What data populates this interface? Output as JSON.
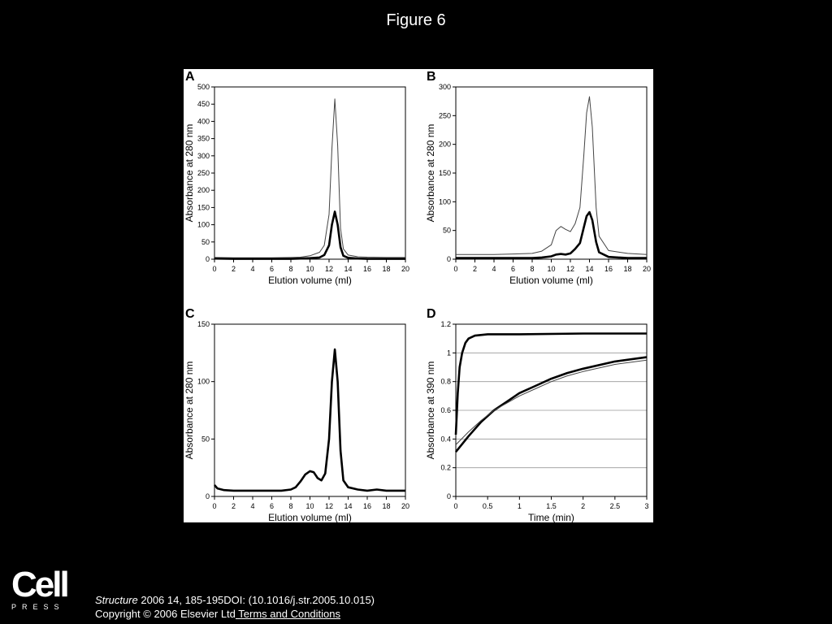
{
  "title": "Figure 6",
  "chart_data": [
    {
      "panel": "A",
      "type": "line",
      "xlabel": "Elution volume (ml)",
      "ylabel": "Absorbance at 280 nm",
      "xlim": [
        0,
        20
      ],
      "ylim": [
        0,
        500
      ],
      "xticks": [
        0,
        2,
        4,
        6,
        8,
        10,
        12,
        14,
        16,
        18,
        20
      ],
      "yticks": [
        0,
        50,
        100,
        150,
        200,
        250,
        300,
        350,
        400,
        450,
        500
      ],
      "series": [
        {
          "style": "thin",
          "x": [
            0,
            2,
            4,
            6,
            8,
            9,
            10,
            11,
            11.5,
            12,
            12.3,
            12.6,
            12.9,
            13.2,
            13.5,
            14,
            15,
            16,
            18,
            20
          ],
          "y": [
            5,
            4,
            4,
            4,
            5,
            6,
            10,
            20,
            40,
            130,
            320,
            465,
            330,
            90,
            30,
            12,
            7,
            6,
            5,
            5
          ]
        },
        {
          "style": "thick",
          "x": [
            0,
            2,
            4,
            6,
            8,
            9,
            10,
            11,
            11.5,
            12,
            12.3,
            12.6,
            12.9,
            13.2,
            13.5,
            14,
            15,
            16,
            18,
            20
          ],
          "y": [
            2,
            1,
            1,
            1,
            1,
            2,
            3,
            5,
            12,
            40,
            100,
            138,
            100,
            35,
            10,
            4,
            2,
            1,
            1,
            1
          ]
        }
      ]
    },
    {
      "panel": "B",
      "type": "line",
      "xlabel": "Elution volume (ml)",
      "ylabel": "Absorbance at 280 nm",
      "xlim": [
        0,
        20
      ],
      "ylim": [
        0,
        300
      ],
      "xticks": [
        0,
        2,
        4,
        6,
        8,
        10,
        12,
        14,
        16,
        18,
        20
      ],
      "yticks": [
        0,
        50,
        100,
        150,
        200,
        250,
        300
      ],
      "series": [
        {
          "style": "thin",
          "x": [
            0,
            2,
            4,
            6,
            8,
            9,
            10,
            10.5,
            11,
            11.5,
            12,
            12.5,
            13,
            13.4,
            13.7,
            14,
            14.3,
            14.7,
            15,
            16,
            18,
            20
          ],
          "y": [
            8,
            8,
            8,
            9,
            10,
            14,
            25,
            50,
            57,
            52,
            48,
            62,
            90,
            180,
            255,
            283,
            230,
            90,
            40,
            15,
            10,
            8
          ]
        },
        {
          "style": "thick",
          "x": [
            0,
            2,
            4,
            6,
            8,
            9,
            10,
            10.5,
            11,
            11.5,
            12,
            12.5,
            13,
            13.4,
            13.7,
            14,
            14.3,
            14.7,
            15,
            16,
            18,
            20
          ],
          "y": [
            2,
            2,
            2,
            2,
            2,
            3,
            5,
            8,
            9,
            8,
            10,
            18,
            28,
            55,
            75,
            82,
            68,
            30,
            12,
            4,
            2,
            2
          ]
        }
      ]
    },
    {
      "panel": "C",
      "type": "line",
      "xlabel": "Elution volume (ml)",
      "ylabel": "Absorbance at 280 nm",
      "xlim": [
        0,
        20
      ],
      "ylim": [
        0,
        150
      ],
      "xticks": [
        0,
        2,
        4,
        6,
        8,
        10,
        12,
        14,
        16,
        18,
        20
      ],
      "yticks": [
        0,
        50,
        100,
        150
      ],
      "series": [
        {
          "style": "thick",
          "x": [
            0,
            0.3,
            1,
            2,
            4,
            6,
            7,
            8,
            8.5,
            9,
            9.5,
            10,
            10.4,
            10.8,
            11.2,
            11.6,
            12,
            12.3,
            12.6,
            12.9,
            13.2,
            13.5,
            14,
            15,
            16,
            17,
            18,
            19,
            20
          ],
          "y": [
            10,
            7,
            5.5,
            5,
            5,
            5,
            5,
            6,
            8,
            13,
            19,
            22,
            21,
            16,
            14,
            20,
            50,
            100,
            128,
            100,
            40,
            14,
            8,
            6,
            5,
            6,
            5,
            5,
            5
          ]
        }
      ]
    },
    {
      "panel": "D",
      "type": "line",
      "xlabel": "Time (min)",
      "ylabel": "Absorbance at 390 nm",
      "xlim": [
        0,
        3
      ],
      "ylim": [
        0,
        1.2
      ],
      "xticks": [
        0,
        0.5,
        1,
        1.5,
        2,
        2.5,
        3
      ],
      "yticks": [
        0,
        0.2,
        0.4,
        0.6,
        0.8,
        1,
        1.2
      ],
      "grid": true,
      "series": [
        {
          "style": "thick",
          "x": [
            0,
            0.03,
            0.06,
            0.1,
            0.15,
            0.2,
            0.3,
            0.5,
            1,
            2,
            3
          ],
          "y": [
            0.43,
            0.72,
            0.9,
            1.0,
            1.07,
            1.1,
            1.12,
            1.13,
            1.13,
            1.135,
            1.135
          ]
        },
        {
          "style": "thick",
          "x": [
            0,
            0.2,
            0.4,
            0.6,
            0.8,
            1,
            1.25,
            1.5,
            1.75,
            2,
            2.5,
            3
          ],
          "y": [
            0.31,
            0.42,
            0.52,
            0.6,
            0.66,
            0.72,
            0.77,
            0.82,
            0.86,
            0.89,
            0.94,
            0.97
          ]
        },
        {
          "style": "thin",
          "x": [
            0,
            0.2,
            0.4,
            0.6,
            0.8,
            1,
            1.25,
            1.5,
            1.75,
            2,
            2.5,
            3
          ],
          "y": [
            0.36,
            0.45,
            0.53,
            0.6,
            0.65,
            0.7,
            0.75,
            0.8,
            0.84,
            0.87,
            0.92,
            0.95
          ]
        }
      ]
    }
  ],
  "logo": {
    "word": "Cell",
    "sub": "PRESS"
  },
  "citation": {
    "journal": "Structure",
    "text": " 2006 14, 185-195DOI: (10.1016/j.str.2005.10.015)"
  },
  "copyright": {
    "text": "Copyright © 2006 Elsevier Ltd",
    "link": " Terms and Conditions"
  }
}
